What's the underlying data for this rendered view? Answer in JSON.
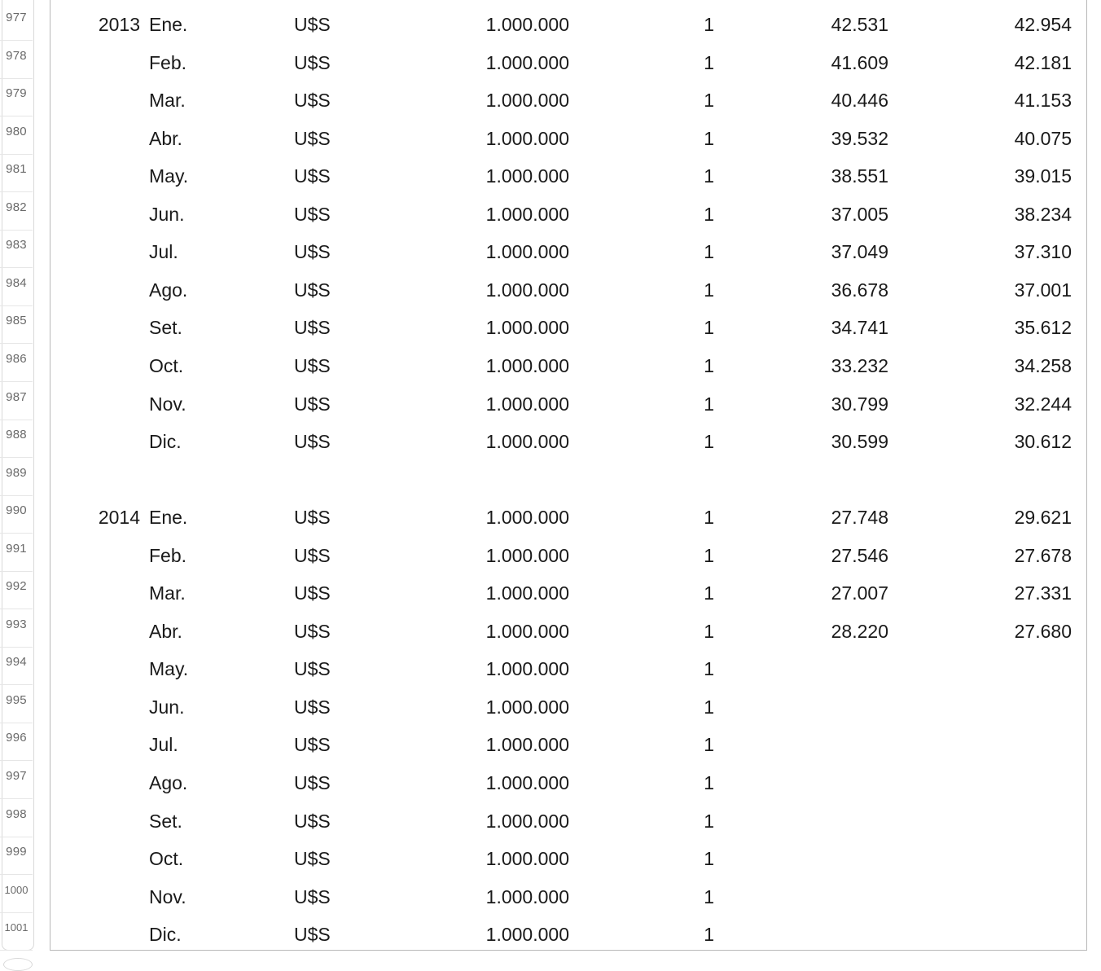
{
  "rows": [
    {
      "num": "977",
      "year": "2013",
      "month": "Ene.",
      "currency": "U$S",
      "amount": "1.000.000",
      "qty": "1",
      "val1": "42.531",
      "val2": "42.954"
    },
    {
      "num": "978",
      "year": "",
      "month": "Feb.",
      "currency": "U$S",
      "amount": "1.000.000",
      "qty": "1",
      "val1": "41.609",
      "val2": "42.181"
    },
    {
      "num": "979",
      "year": "",
      "month": "Mar.",
      "currency": "U$S",
      "amount": "1.000.000",
      "qty": "1",
      "val1": "40.446",
      "val2": "41.153"
    },
    {
      "num": "980",
      "year": "",
      "month": "Abr.",
      "currency": "U$S",
      "amount": "1.000.000",
      "qty": "1",
      "val1": "39.532",
      "val2": "40.075"
    },
    {
      "num": "981",
      "year": "",
      "month": "May.",
      "currency": "U$S",
      "amount": "1.000.000",
      "qty": "1",
      "val1": "38.551",
      "val2": "39.015"
    },
    {
      "num": "982",
      "year": "",
      "month": "Jun.",
      "currency": "U$S",
      "amount": "1.000.000",
      "qty": "1",
      "val1": "37.005",
      "val2": "38.234"
    },
    {
      "num": "983",
      "year": "",
      "month": "Jul.",
      "currency": "U$S",
      "amount": "1.000.000",
      "qty": "1",
      "val1": "37.049",
      "val2": "37.310"
    },
    {
      "num": "984",
      "year": "",
      "month": "Ago.",
      "currency": "U$S",
      "amount": "1.000.000",
      "qty": "1",
      "val1": "36.678",
      "val2": "37.001"
    },
    {
      "num": "985",
      "year": "",
      "month": "Set.",
      "currency": "U$S",
      "amount": "1.000.000",
      "qty": "1",
      "val1": "34.741",
      "val2": "35.612"
    },
    {
      "num": "986",
      "year": "",
      "month": "Oct.",
      "currency": "U$S",
      "amount": "1.000.000",
      "qty": "1",
      "val1": "33.232",
      "val2": "34.258"
    },
    {
      "num": "987",
      "year": "",
      "month": "Nov.",
      "currency": "U$S",
      "amount": "1.000.000",
      "qty": "1",
      "val1": "30.799",
      "val2": "32.244"
    },
    {
      "num": "988",
      "year": "",
      "month": "Dic.",
      "currency": "U$S",
      "amount": "1.000.000",
      "qty": "1",
      "val1": "30.599",
      "val2": "30.612"
    },
    {
      "num": "989",
      "year": "",
      "month": "",
      "currency": "",
      "amount": "",
      "qty": "",
      "val1": "",
      "val2": ""
    },
    {
      "num": "990",
      "year": "2014",
      "month": "Ene.",
      "currency": "U$S",
      "amount": "1.000.000",
      "qty": "1",
      "val1": "27.748",
      "val2": "29.621"
    },
    {
      "num": "991",
      "year": "",
      "month": "Feb.",
      "currency": "U$S",
      "amount": "1.000.000",
      "qty": "1",
      "val1": "27.546",
      "val2": "27.678"
    },
    {
      "num": "992",
      "year": "",
      "month": "Mar.",
      "currency": "U$S",
      "amount": "1.000.000",
      "qty": "1",
      "val1": "27.007",
      "val2": "27.331"
    },
    {
      "num": "993",
      "year": "",
      "month": "Abr.",
      "currency": "U$S",
      "amount": "1.000.000",
      "qty": "1",
      "val1": "28.220",
      "val2": "27.680"
    },
    {
      "num": "994",
      "year": "",
      "month": "May.",
      "currency": "U$S",
      "amount": "1.000.000",
      "qty": "1",
      "val1": "",
      "val2": ""
    },
    {
      "num": "995",
      "year": "",
      "month": "Jun.",
      "currency": "U$S",
      "amount": "1.000.000",
      "qty": "1",
      "val1": "",
      "val2": ""
    },
    {
      "num": "996",
      "year": "",
      "month": "Jul.",
      "currency": "U$S",
      "amount": "1.000.000",
      "qty": "1",
      "val1": "",
      "val2": ""
    },
    {
      "num": "997",
      "year": "",
      "month": "Ago.",
      "currency": "U$S",
      "amount": "1.000.000",
      "qty": "1",
      "val1": "",
      "val2": ""
    },
    {
      "num": "998",
      "year": "",
      "month": "Set.",
      "currency": "U$S",
      "amount": "1.000.000",
      "qty": "1",
      "val1": "",
      "val2": ""
    },
    {
      "num": "999",
      "year": "",
      "month": "Oct.",
      "currency": "U$S",
      "amount": "1.000.000",
      "qty": "1",
      "val1": "",
      "val2": ""
    },
    {
      "num": "1000",
      "year": "",
      "month": "Nov.",
      "currency": "U$S",
      "amount": "1.000.000",
      "qty": "1",
      "val1": "",
      "val2": ""
    },
    {
      "num": "1001",
      "year": "",
      "month": "Dic.",
      "currency": "U$S",
      "amount": "1.000.000",
      "qty": "1",
      "val1": "",
      "val2": ""
    }
  ]
}
